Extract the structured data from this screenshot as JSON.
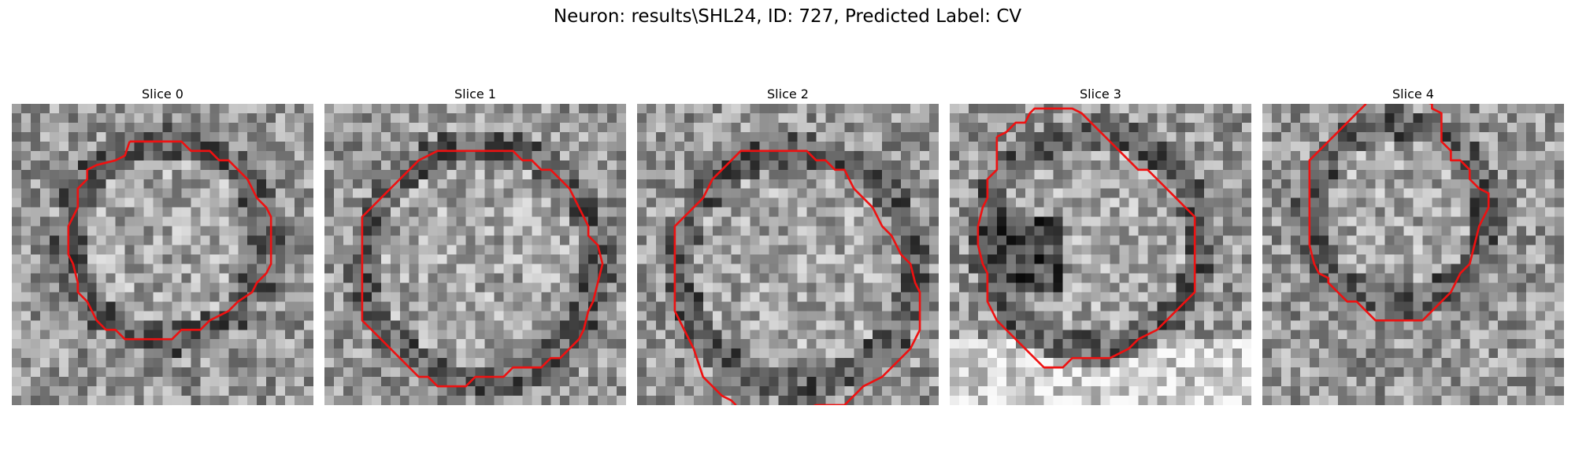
{
  "figure": {
    "title": "Neuron: results\\SHL24, ID: 727, Predicted Label: CV"
  },
  "panels": [
    {
      "title": "Slice 0"
    },
    {
      "title": "Slice 1"
    },
    {
      "title": "Slice 2"
    },
    {
      "title": "Slice 3"
    },
    {
      "title": "Slice 4"
    }
  ],
  "colors": {
    "contour": "#ee1111",
    "background": "#ffffff"
  }
}
